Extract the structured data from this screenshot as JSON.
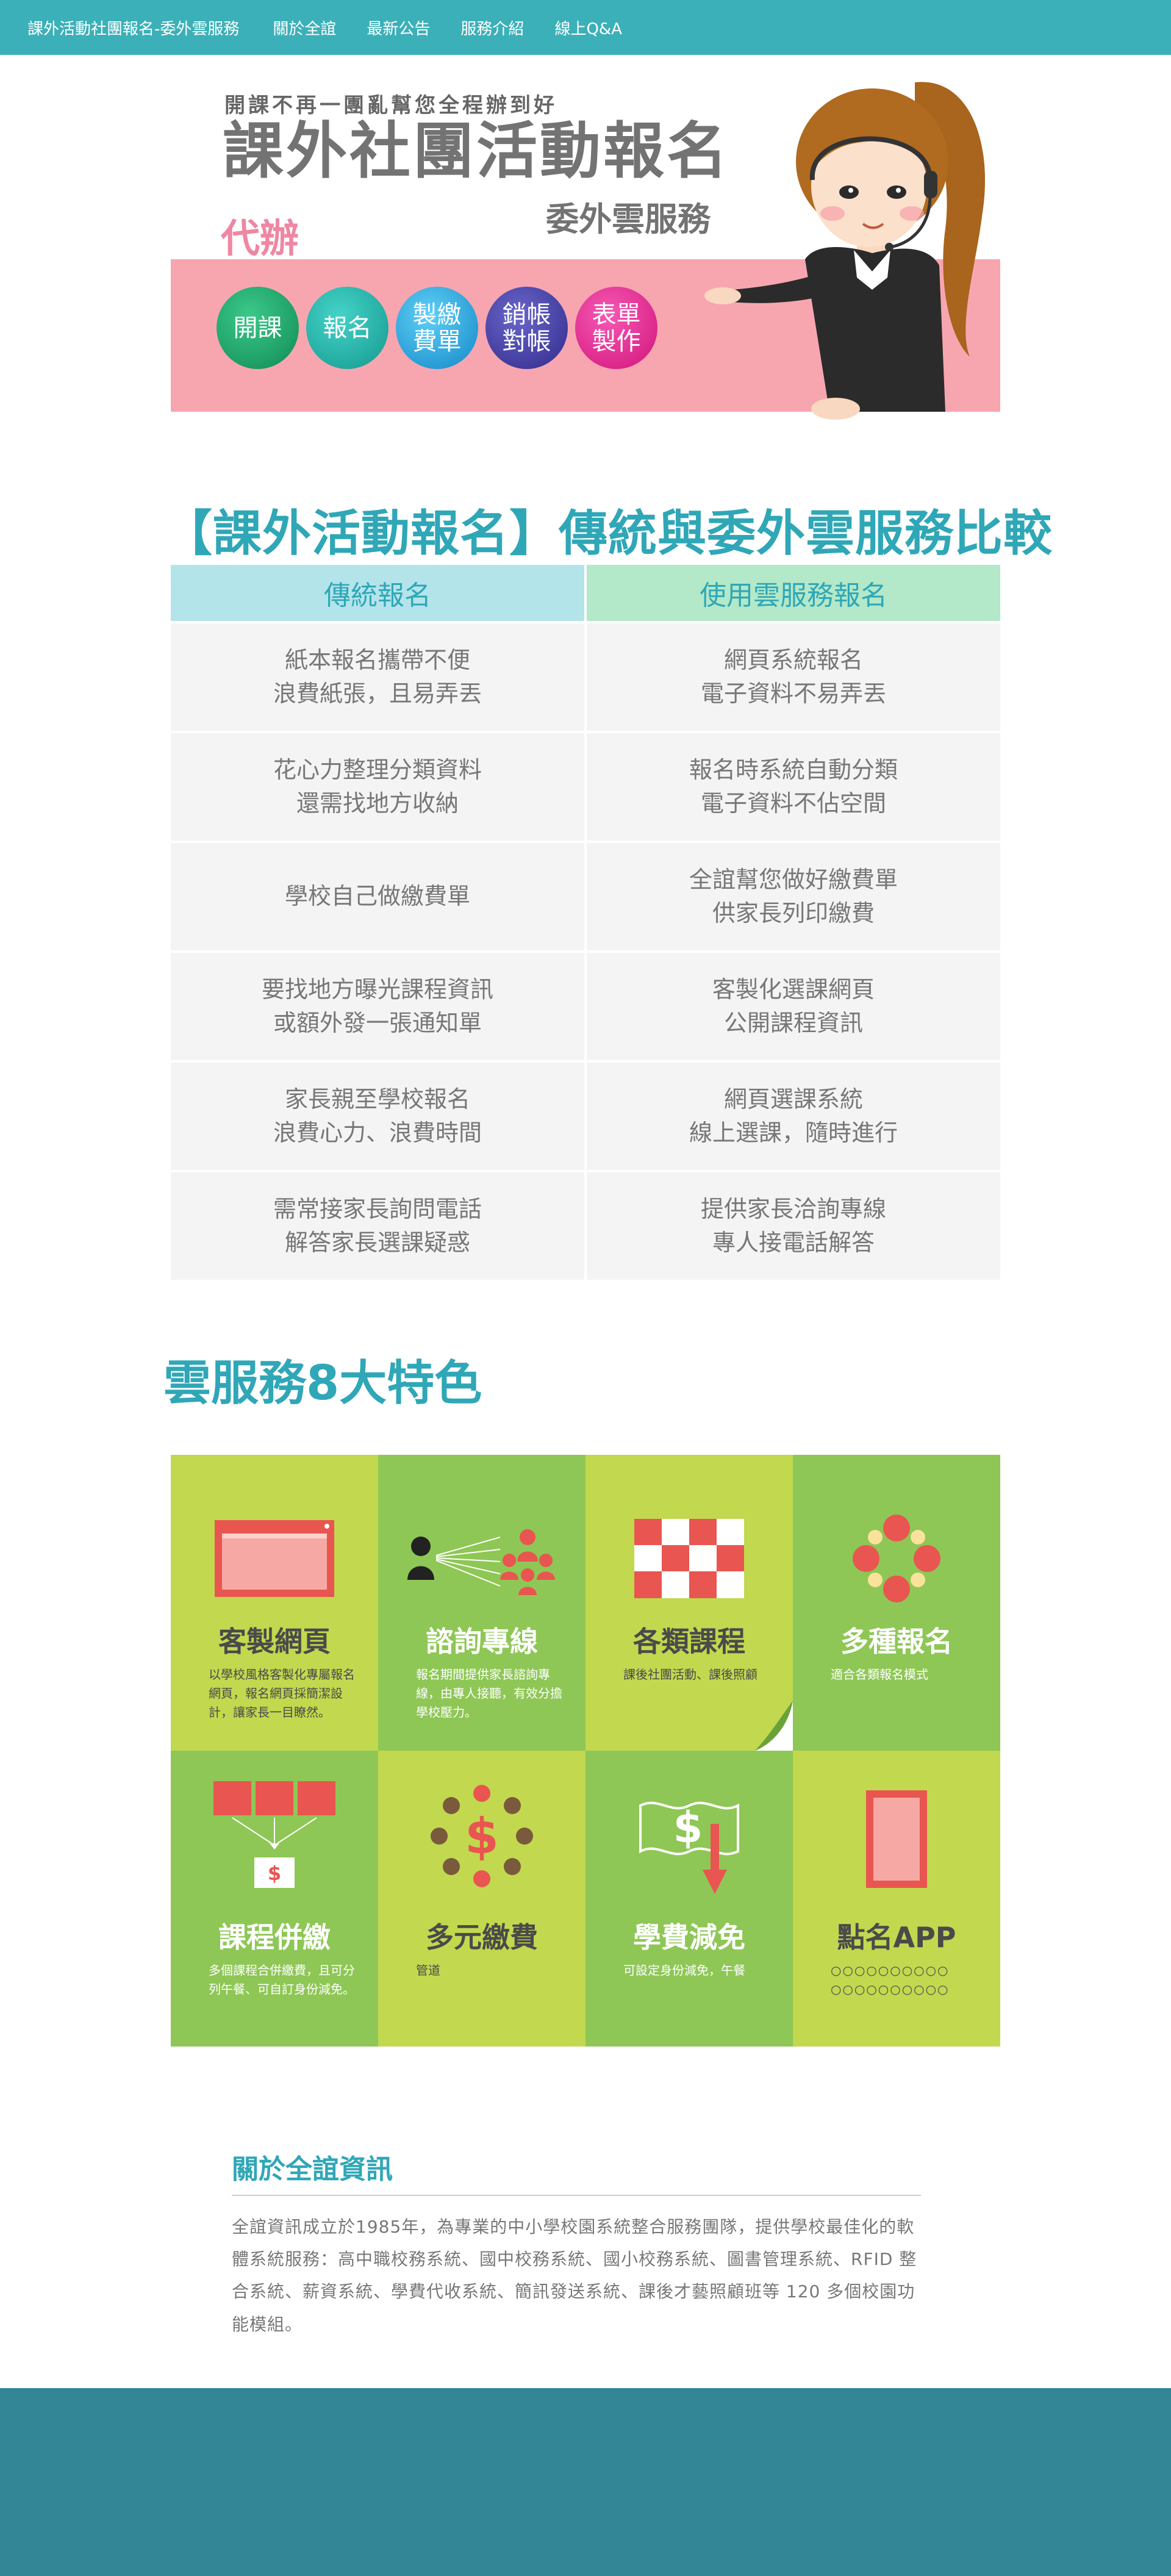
{
  "nav": {
    "brand": "課外活動社團報名-委外雲服務",
    "links": [
      "關於全誼",
      "最新公告",
      "服務介紹",
      "線上Q&A"
    ]
  },
  "hero": {
    "tagline": "開課不再一團亂幫您全程辦到好",
    "headline": "課外社團活動報名",
    "subheadline": "委外雲服務",
    "badge": "代辦",
    "services": [
      "開課",
      "報名",
      "製繳\n費單",
      "銷帳\n對帳",
      "表單\n製作"
    ]
  },
  "comparison": {
    "title": "【課外活動報名】傳統與委外雲服務比較",
    "headers": [
      "傳統報名",
      "使用雲服務報名"
    ],
    "rows": [
      [
        "紙本報名攜帶不便\n浪費紙張，且易弄丟",
        "網頁系統報名\n電子資料不易弄丟"
      ],
      [
        "花心力整理分類資料\n還需找地方收納",
        "報名時系統自動分類\n電子資料不佔空間"
      ],
      [
        "學校自己做繳費單",
        "全誼幫您做好繳費單\n供家長列印繳費"
      ],
      [
        "要找地方曝光課程資訊\n或額外發一張通知單",
        "客製化選課網頁\n公開課程資訊"
      ],
      [
        "家長親至學校報名\n浪費心力、浪費時間",
        "網頁選課系統\n線上選課，隨時進行"
      ],
      [
        "需常接家長詢問電話\n解答家長選課疑惑",
        "提供家長洽詢專線\n專人接電話解答"
      ]
    ]
  },
  "features": {
    "title": "雲服務8大特色",
    "items": [
      {
        "title": "客製網頁",
        "desc": "以學校風格客製化專屬報名網頁，報名網頁採簡潔設計，讓家長一目瞭然。",
        "icon": "webpage-icon"
      },
      {
        "title": "諮詢專線",
        "desc": "報名期間提供家長諮詢專線，由專人接聽，有效分擔學校壓力。",
        "icon": "hotline-icon"
      },
      {
        "title": "各類課程",
        "desc": "課後社團活動、課後照顧",
        "icon": "checkerboard-icon"
      },
      {
        "title": "多種報名",
        "desc": "適合各類報名模式",
        "icon": "flower-icon"
      },
      {
        "title": "課程併繳",
        "desc": "多個課程合併繳費，且可分列午餐、可自訂身份減免。",
        "icon": "merge-icon"
      },
      {
        "title": "多元繳費",
        "desc": "管道",
        "icon": "dollar-dots-icon"
      },
      {
        "title": "學費減免",
        "desc": "可設定身份減免，午餐",
        "icon": "fee-reduction-icon"
      },
      {
        "title": "點名APP",
        "desc": "○○○○○○○○○○ ○○○○○○○○○○",
        "icon": "tablet-icon"
      }
    ]
  },
  "about": {
    "title": "關於全誼資訊",
    "text": "全誼資訊成立於1985年，為專業的中小學校園系統整合服務團隊，提供學校最佳化的軟體系統服務：高中職校務系統、國中校務系統、國小校務系統、圖書管理系統、RFID 整合系統、薪資系統、學費代收系統、簡訊發送系統、課後才藝照顧班等 120 多個校園功能模組。"
  },
  "colors": {
    "accent": "#3cb0b8",
    "title_teal": "#2fa7b7",
    "pink_band": "#f7a6b0",
    "tile_green": "#8ec755",
    "tile_lime": "#c2d84f",
    "footer": "#338696"
  }
}
